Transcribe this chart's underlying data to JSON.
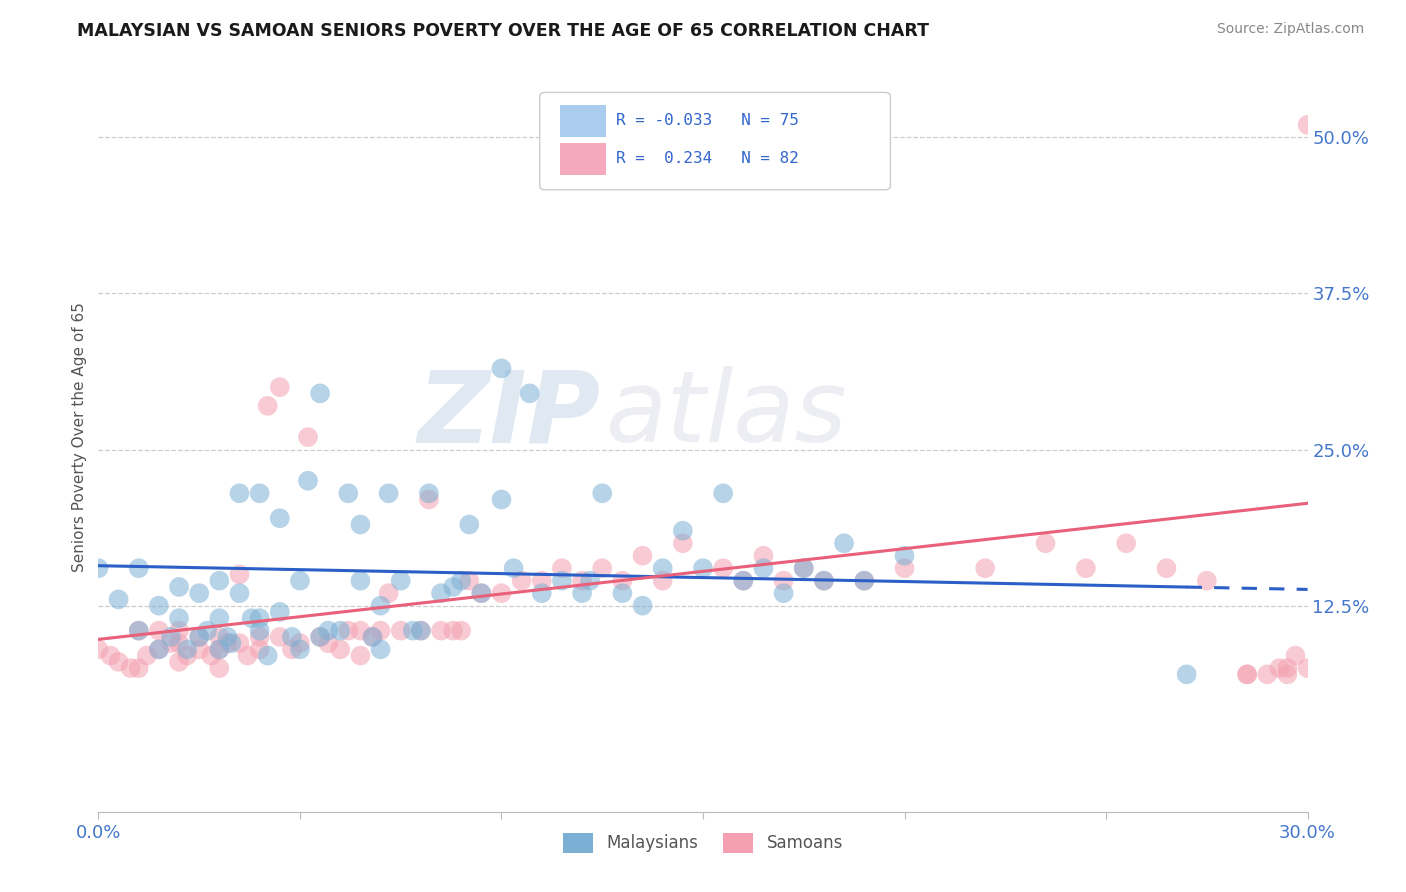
{
  "title": "MALAYSIAN VS SAMOAN SENIORS POVERTY OVER THE AGE OF 65 CORRELATION CHART",
  "source": "Source: ZipAtlas.com",
  "ylabel_label": "Seniors Poverty Over the Age of 65",
  "xlim": [
    0.0,
    0.3
  ],
  "ylim": [
    -0.04,
    0.56
  ],
  "xticks": [
    0.0,
    0.05,
    0.1,
    0.15,
    0.2,
    0.25,
    0.3
  ],
  "xticklabels": [
    "0.0%",
    "",
    "",
    "",
    "",
    "",
    "30.0%"
  ],
  "ytick_vals": [
    0.125,
    0.25,
    0.375,
    0.5
  ],
  "ytick_labels": [
    "12.5%",
    "25.0%",
    "37.5%",
    "50.0%"
  ],
  "blue_color": "#7BAFD4",
  "pink_color": "#F4A0B0",
  "blue_line_color": "#2B5FC7",
  "pink_line_color": "#E8607A",
  "blue_line_solid_end": 0.27,
  "blue_line_start_y": 0.157,
  "blue_line_end_y": 0.138,
  "pink_line_start_y": 0.098,
  "pink_line_end_y": 0.207,
  "malaysians_x": [
    0.0,
    0.005,
    0.01,
    0.01,
    0.015,
    0.015,
    0.018,
    0.02,
    0.02,
    0.022,
    0.025,
    0.025,
    0.027,
    0.03,
    0.03,
    0.03,
    0.032,
    0.033,
    0.035,
    0.035,
    0.038,
    0.04,
    0.04,
    0.04,
    0.042,
    0.045,
    0.045,
    0.048,
    0.05,
    0.05,
    0.052,
    0.055,
    0.055,
    0.057,
    0.06,
    0.062,
    0.065,
    0.065,
    0.068,
    0.07,
    0.07,
    0.072,
    0.075,
    0.078,
    0.08,
    0.082,
    0.085,
    0.088,
    0.09,
    0.092,
    0.095,
    0.1,
    0.1,
    0.103,
    0.107,
    0.11,
    0.115,
    0.12,
    0.122,
    0.125,
    0.13,
    0.135,
    0.14,
    0.145,
    0.15,
    0.155,
    0.16,
    0.165,
    0.17,
    0.175,
    0.18,
    0.185,
    0.19,
    0.2,
    0.27
  ],
  "malaysians_y": [
    0.155,
    0.13,
    0.105,
    0.155,
    0.09,
    0.125,
    0.1,
    0.115,
    0.14,
    0.09,
    0.1,
    0.135,
    0.105,
    0.09,
    0.115,
    0.145,
    0.1,
    0.095,
    0.135,
    0.215,
    0.115,
    0.105,
    0.115,
    0.215,
    0.085,
    0.12,
    0.195,
    0.1,
    0.09,
    0.145,
    0.225,
    0.1,
    0.295,
    0.105,
    0.105,
    0.215,
    0.19,
    0.145,
    0.1,
    0.09,
    0.125,
    0.215,
    0.145,
    0.105,
    0.105,
    0.215,
    0.135,
    0.14,
    0.145,
    0.19,
    0.135,
    0.21,
    0.315,
    0.155,
    0.295,
    0.135,
    0.145,
    0.135,
    0.145,
    0.215,
    0.135,
    0.125,
    0.155,
    0.185,
    0.155,
    0.215,
    0.145,
    0.155,
    0.135,
    0.155,
    0.145,
    0.175,
    0.145,
    0.165,
    0.07
  ],
  "samoans_x": [
    0.0,
    0.003,
    0.005,
    0.008,
    0.01,
    0.01,
    0.012,
    0.015,
    0.015,
    0.018,
    0.02,
    0.02,
    0.02,
    0.022,
    0.025,
    0.025,
    0.028,
    0.03,
    0.03,
    0.03,
    0.032,
    0.035,
    0.035,
    0.037,
    0.04,
    0.04,
    0.042,
    0.045,
    0.045,
    0.048,
    0.05,
    0.052,
    0.055,
    0.057,
    0.06,
    0.062,
    0.065,
    0.065,
    0.068,
    0.07,
    0.072,
    0.075,
    0.08,
    0.082,
    0.085,
    0.088,
    0.09,
    0.092,
    0.095,
    0.1,
    0.105,
    0.11,
    0.115,
    0.12,
    0.125,
    0.13,
    0.135,
    0.14,
    0.145,
    0.155,
    0.16,
    0.165,
    0.17,
    0.175,
    0.18,
    0.19,
    0.2,
    0.22,
    0.235,
    0.245,
    0.255,
    0.265,
    0.275,
    0.285,
    0.29,
    0.293,
    0.295,
    0.297,
    0.3,
    0.295,
    0.285,
    0.3
  ],
  "samoans_y": [
    0.09,
    0.085,
    0.08,
    0.075,
    0.075,
    0.105,
    0.085,
    0.09,
    0.105,
    0.095,
    0.08,
    0.095,
    0.105,
    0.085,
    0.09,
    0.1,
    0.085,
    0.075,
    0.09,
    0.1,
    0.095,
    0.095,
    0.15,
    0.085,
    0.09,
    0.1,
    0.285,
    0.1,
    0.3,
    0.09,
    0.095,
    0.26,
    0.1,
    0.095,
    0.09,
    0.105,
    0.085,
    0.105,
    0.1,
    0.105,
    0.135,
    0.105,
    0.105,
    0.21,
    0.105,
    0.105,
    0.105,
    0.145,
    0.135,
    0.135,
    0.145,
    0.145,
    0.155,
    0.145,
    0.155,
    0.145,
    0.165,
    0.145,
    0.175,
    0.155,
    0.145,
    0.165,
    0.145,
    0.155,
    0.145,
    0.145,
    0.155,
    0.155,
    0.175,
    0.155,
    0.175,
    0.155,
    0.145,
    0.07,
    0.07,
    0.075,
    0.075,
    0.085,
    0.075,
    0.07,
    0.07,
    0.51
  ]
}
